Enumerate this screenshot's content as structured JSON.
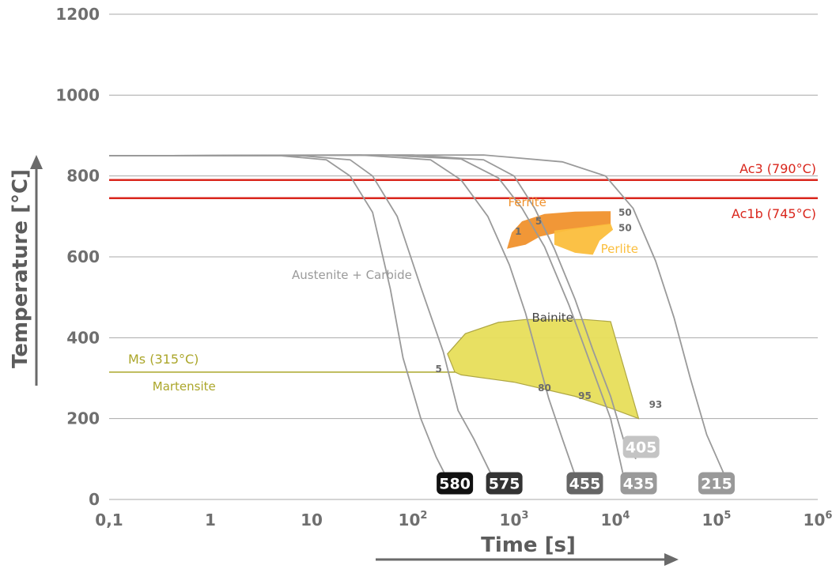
{
  "chart_data": {
    "type": "line",
    "xlabel": "Time [s]",
    "ylabel": "Temperature [°C]",
    "x_scale": "log",
    "xlim": [
      0.1,
      1000000
    ],
    "ylim": [
      0,
      1200
    ],
    "x_ticks": [
      {
        "value": 0.1,
        "base": "0,1",
        "exp": ""
      },
      {
        "value": 1,
        "base": "1",
        "exp": ""
      },
      {
        "value": 10,
        "base": "10",
        "exp": ""
      },
      {
        "value": 100,
        "base": "10",
        "exp": "2"
      },
      {
        "value": 1000,
        "base": "10",
        "exp": "3"
      },
      {
        "value": 10000,
        "base": "10",
        "exp": "4"
      },
      {
        "value": 100000,
        "base": "10",
        "exp": "5"
      },
      {
        "value": 1000000,
        "base": "10",
        "exp": "6"
      }
    ],
    "y_ticks": [
      {
        "value": 0,
        "label": "0"
      },
      {
        "value": 200,
        "label": "200"
      },
      {
        "value": 400,
        "label": "400"
      },
      {
        "value": 600,
        "label": "600"
      },
      {
        "value": 800,
        "label": "800"
      },
      {
        "value": 1000,
        "label": "1000"
      },
      {
        "value": 1200,
        "label": "1200"
      }
    ],
    "grid": "horizontal",
    "reference_lines": [
      {
        "label": "Ac3 (790°C)",
        "y": 790,
        "color": "#d9261c"
      },
      {
        "label": "Ac1b (745°C)",
        "y": 745,
        "color": "#d9261c"
      },
      {
        "label": "Ms (315°C)",
        "y": 315,
        "color": "#aba62a"
      }
    ],
    "phase_labels": [
      {
        "label": "Austenite + Carbide",
        "x": 25,
        "y": 545,
        "color": "#9a9a9a"
      },
      {
        "label": "Ferrite",
        "x": 1350,
        "y": 725,
        "color": "#f0912c"
      },
      {
        "label": "Perlite",
        "x": 11000,
        "y": 610,
        "color": "#fbbe3c"
      },
      {
        "label": "Bainite",
        "x": 2400,
        "y": 440,
        "color": "#444444"
      },
      {
        "label": "Martensite",
        "x": 0.55,
        "y": 270,
        "color": "#aba62a"
      }
    ],
    "transformation_percentages": [
      {
        "label": "1",
        "x": 1100,
        "y": 655
      },
      {
        "label": "5",
        "x": 1750,
        "y": 680
      },
      {
        "label": "50",
        "x": 12500,
        "y": 702
      },
      {
        "label": "50",
        "x": 12500,
        "y": 664
      },
      {
        "label": "5",
        "x": 180,
        "y": 315
      },
      {
        "label": "80",
        "x": 2000,
        "y": 268
      },
      {
        "label": "95",
        "x": 5000,
        "y": 248
      },
      {
        "label": "93",
        "x": 25000,
        "y": 227
      }
    ],
    "regions": [
      {
        "name": "Ferrite",
        "color": "#f0912c",
        "points": [
          [
            850,
            620
          ],
          [
            950,
            660
          ],
          [
            1200,
            688
          ],
          [
            2000,
            706
          ],
          [
            4000,
            712
          ],
          [
            9000,
            713
          ],
          [
            9000,
            680
          ],
          [
            3500,
            666
          ],
          [
            1800,
            650
          ],
          [
            1300,
            630
          ]
        ]
      },
      {
        "name": "Perlite",
        "color": "#fbbe3c",
        "points": [
          [
            2500,
            630
          ],
          [
            4000,
            610
          ],
          [
            6000,
            605
          ],
          [
            7000,
            640
          ],
          [
            9500,
            667
          ],
          [
            9000,
            682
          ],
          [
            5000,
            674
          ],
          [
            2500,
            665
          ]
        ]
      },
      {
        "name": "Bainite",
        "color": "#e7df5a",
        "points": [
          [
            260,
            315
          ],
          [
            220,
            360
          ],
          [
            330,
            410
          ],
          [
            700,
            438
          ],
          [
            1300,
            445
          ],
          [
            5000,
            445
          ],
          [
            9000,
            440
          ],
          [
            17000,
            200
          ],
          [
            9000,
            226
          ],
          [
            4000,
            255
          ],
          [
            1000,
            290
          ],
          [
            300,
            308
          ]
        ]
      }
    ],
    "cooling_curves": [
      {
        "name": "580",
        "points": [
          [
            0.1,
            850
          ],
          [
            5,
            850
          ],
          [
            14,
            840
          ],
          [
            24,
            800
          ],
          [
            40,
            710
          ],
          [
            60,
            520
          ],
          [
            80,
            350
          ],
          [
            120,
            200
          ],
          [
            170,
            105
          ],
          [
            210,
            60
          ]
        ]
      },
      {
        "name": "575",
        "points": [
          [
            0.1,
            850
          ],
          [
            8,
            850
          ],
          [
            24,
            840
          ],
          [
            40,
            800
          ],
          [
            70,
            700
          ],
          [
            120,
            525
          ],
          [
            200,
            365
          ],
          [
            280,
            220
          ],
          [
            400,
            150
          ],
          [
            600,
            60
          ]
        ]
      },
      {
        "name": "455",
        "points": [
          [
            0.1,
            850
          ],
          [
            30,
            852
          ],
          [
            150,
            840
          ],
          [
            300,
            790
          ],
          [
            550,
            700
          ],
          [
            900,
            580
          ],
          [
            1300,
            460
          ],
          [
            2200,
            250
          ],
          [
            3000,
            150
          ],
          [
            4000,
            60
          ]
        ]
      },
      {
        "name": "435",
        "points": [
          [
            0.1,
            850
          ],
          [
            50,
            852
          ],
          [
            300,
            842
          ],
          [
            700,
            795
          ],
          [
            1200,
            720
          ],
          [
            2000,
            625
          ],
          [
            3500,
            480
          ],
          [
            6000,
            320
          ],
          [
            9000,
            200
          ],
          [
            12000,
            60
          ]
        ]
      },
      {
        "name": "405",
        "points": [
          [
            0.1,
            850
          ],
          [
            100,
            852
          ],
          [
            500,
            840
          ],
          [
            1000,
            800
          ],
          [
            1600,
            720
          ],
          [
            2500,
            620
          ],
          [
            4000,
            495
          ],
          [
            6000,
            370
          ],
          [
            9000,
            255
          ],
          [
            12000,
            150
          ],
          [
            16000,
            100
          ]
        ]
      },
      {
        "name": "215",
        "points": [
          [
            0.1,
            850
          ],
          [
            500,
            852
          ],
          [
            3000,
            835
          ],
          [
            8000,
            800
          ],
          [
            15000,
            720
          ],
          [
            25000,
            590
          ],
          [
            38000,
            450
          ],
          [
            55000,
            300
          ],
          [
            80000,
            160
          ],
          [
            120000,
            60
          ]
        ]
      }
    ],
    "badges": [
      {
        "label": "580",
        "x": 260,
        "y": 40,
        "color": "#111111"
      },
      {
        "label": "575",
        "x": 800,
        "y": 40,
        "color": "#333333"
      },
      {
        "label": "455",
        "x": 5000,
        "y": 40,
        "color": "#666666"
      },
      {
        "label": "435",
        "x": 17000,
        "y": 40,
        "color": "#9a9a9a"
      },
      {
        "label": "405",
        "x": 18000,
        "y": 130,
        "color": "#c4c4c4"
      },
      {
        "label": "215",
        "x": 100000,
        "y": 40,
        "color": "#999999"
      }
    ]
  }
}
